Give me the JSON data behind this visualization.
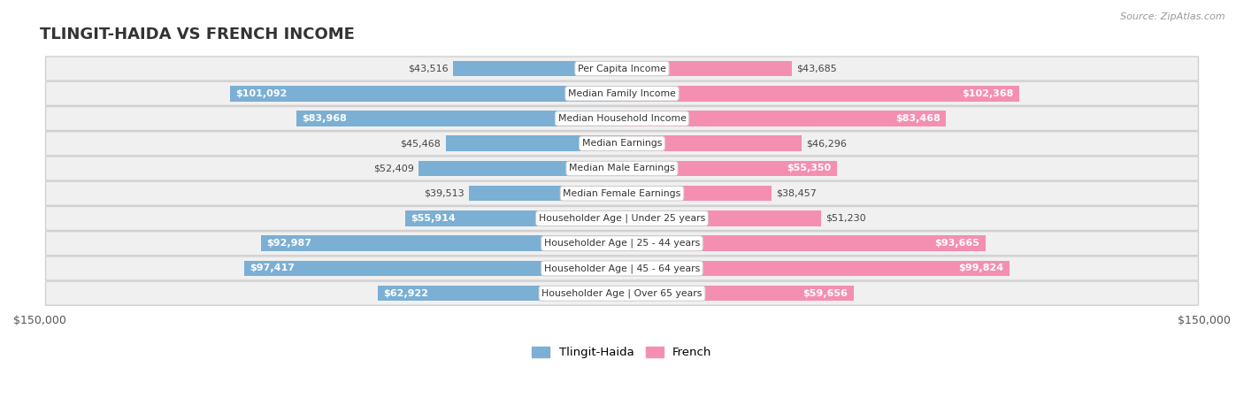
{
  "title": "TLINGIT-HAIDA VS FRENCH INCOME",
  "source": "Source: ZipAtlas.com",
  "categories": [
    "Per Capita Income",
    "Median Family Income",
    "Median Household Income",
    "Median Earnings",
    "Median Male Earnings",
    "Median Female Earnings",
    "Householder Age | Under 25 years",
    "Householder Age | 25 - 44 years",
    "Householder Age | 45 - 64 years",
    "Householder Age | Over 65 years"
  ],
  "tlingit_values": [
    43516,
    101092,
    83968,
    45468,
    52409,
    39513,
    55914,
    92987,
    97417,
    62922
  ],
  "french_values": [
    43685,
    102368,
    83468,
    46296,
    55350,
    38457,
    51230,
    93665,
    99824,
    59656
  ],
  "tlingit_labels": [
    "$43,516",
    "$101,092",
    "$83,968",
    "$45,468",
    "$52,409",
    "$39,513",
    "$55,914",
    "$92,987",
    "$97,417",
    "$62,922"
  ],
  "french_labels": [
    "$43,685",
    "$102,368",
    "$83,468",
    "$46,296",
    "$55,350",
    "$38,457",
    "$51,230",
    "$93,665",
    "$99,824",
    "$59,656"
  ],
  "max_value": 150000,
  "tlingit_color": "#7bafd4",
  "french_color": "#f48fb1",
  "bg_color": "#ffffff",
  "row_bg_light": "#f0f0f0",
  "row_bg_dark": "#e8e8e8",
  "legend_tlingit": "Tlingit-Haida",
  "legend_french": "French",
  "bar_height": 0.62,
  "inside_label_threshold": 55000,
  "title_fontsize": 13,
  "label_fontsize": 8,
  "cat_fontsize": 7.8
}
